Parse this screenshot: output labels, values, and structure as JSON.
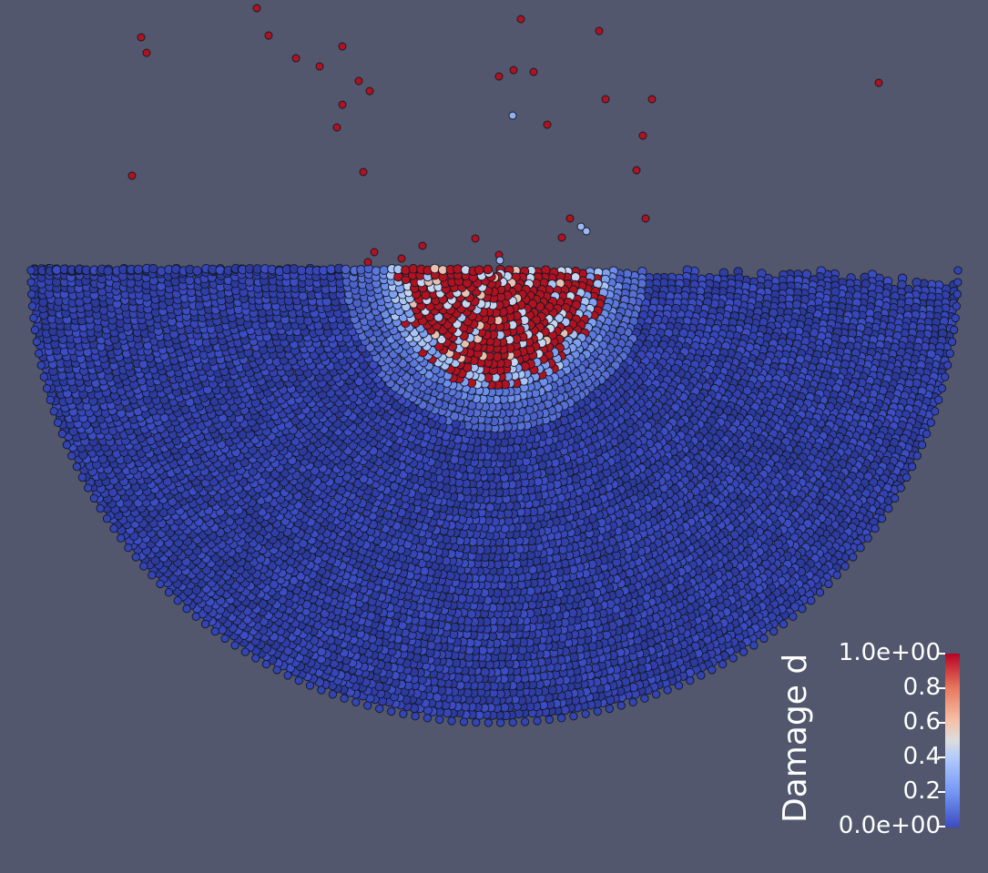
{
  "legend": {
    "title": "Damage d",
    "ticks": [
      "1.0e+00",
      "0.8",
      "0.6",
      "0.4",
      "0.2",
      "0.0e+00"
    ],
    "tick_values": [
      1.0,
      0.8,
      0.6,
      0.4,
      0.2,
      0.0
    ],
    "colormap": [
      "#3b4cc0",
      "#7396f5",
      "#b0cbfc",
      "#dddddd",
      "#f6bfa6",
      "#e9785d",
      "#b40426"
    ]
  },
  "colors": {
    "background": "#52576e",
    "undamaged": "#3646b8",
    "damaged": "#b1121f",
    "partial": "#a9c4f5",
    "text": "#ffffff"
  }
}
